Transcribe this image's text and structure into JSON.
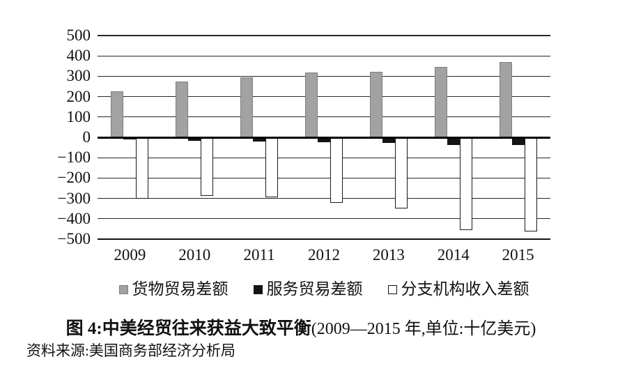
{
  "figure": {
    "title": {
      "prefix": "图 4:",
      "main": "中美经贸往来获益大致平衡",
      "suffix": "(2009—2015 年,单位:十亿美元)"
    },
    "source": "资料来源:美国商务部经济分析局",
    "colors": {
      "background": "#ffffff",
      "grid": "#262626",
      "zero_axis": "#000000",
      "text": "#111111"
    }
  },
  "chart_data": {
    "type": "bar",
    "title": "图 4:中美经贸往来获益大致平衡(2009—2015 年,单位:十亿美元)",
    "unit": "十亿美元",
    "categories": [
      "2009",
      "2010",
      "2011",
      "2012",
      "2013",
      "2014",
      "2015"
    ],
    "series": [
      {
        "key": "goods-trade-balance",
        "name": "货物贸易差额",
        "fill": "#a2a2a2",
        "border": "#7d7d7d",
        "values": [
          227,
          275,
          295,
          317,
          322,
          345,
          370
        ]
      },
      {
        "key": "services-trade-balance",
        "name": "服务贸易差额",
        "fill": "#141414",
        "border": "#141414",
        "values": [
          -11,
          -16,
          -20,
          -24,
          -28,
          -36,
          -38
        ]
      },
      {
        "key": "branch-income-balance",
        "name": "分支机构收入差额",
        "fill": "#ffffff",
        "border": "#1a1a1a",
        "values": [
          -300,
          -288,
          -294,
          -322,
          -350,
          -455,
          -462
        ]
      }
    ],
    "ylim": [
      -500,
      500
    ],
    "ytick_step": 100,
    "grid": true,
    "legend_position": "bottom",
    "xlabel": "",
    "ylabel": ""
  }
}
